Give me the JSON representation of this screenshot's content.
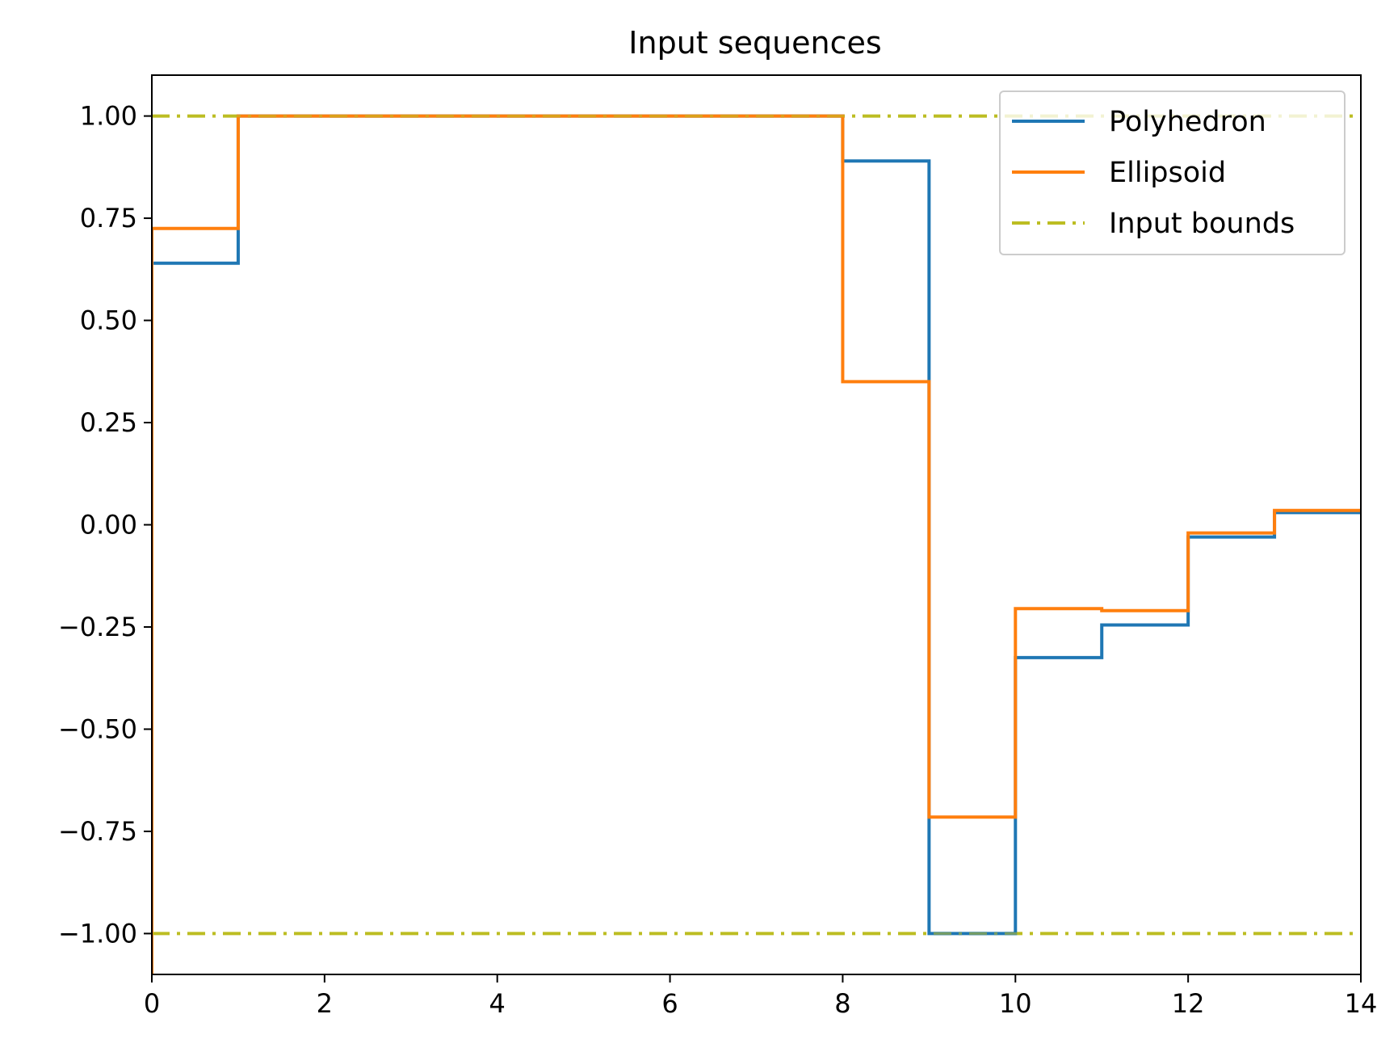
{
  "chart_data": {
    "type": "line",
    "title": "Input sequences",
    "xlabel": "",
    "ylabel": "",
    "xlim": [
      0,
      14
    ],
    "ylim": [
      -1.1,
      1.1
    ],
    "grid": false,
    "legend_position": "top-right",
    "x_ticks": [
      0,
      2,
      4,
      6,
      8,
      10,
      12,
      14
    ],
    "x_tick_labels": [
      "0",
      "2",
      "4",
      "6",
      "8",
      "10",
      "12",
      "14"
    ],
    "y_ticks": [
      1.0,
      0.75,
      0.5,
      0.25,
      0.0,
      -0.25,
      -0.5,
      -0.75,
      -1.0
    ],
    "y_tick_labels": [
      "1.00",
      "0.75",
      "0.50",
      "0.25",
      "0.00",
      "−0.25",
      "−0.50",
      "−0.75",
      "−1.00"
    ],
    "series": [
      {
        "name": "Polyhedron",
        "style": "step",
        "color": "#1f77b4",
        "x": [
          0,
          1,
          2,
          3,
          4,
          5,
          6,
          7,
          8,
          9,
          10,
          11,
          12,
          13,
          14
        ],
        "values": [
          0.64,
          1.0,
          1.0,
          1.0,
          1.0,
          1.0,
          1.0,
          1.0,
          0.89,
          -1.0,
          -0.325,
          -0.245,
          -0.03,
          0.03,
          0.03
        ]
      },
      {
        "name": "Ellipsoid",
        "style": "step",
        "color": "#ff7f0e",
        "x": [
          0,
          1,
          2,
          3,
          4,
          5,
          6,
          7,
          8,
          9,
          10,
          11,
          12,
          13,
          14
        ],
        "values": [
          0.725,
          1.0,
          1.0,
          1.0,
          1.0,
          1.0,
          1.0,
          1.0,
          0.35,
          -0.715,
          -0.205,
          -0.21,
          -0.02,
          0.035,
          0.035
        ]
      },
      {
        "name": "Input bounds",
        "style": "dashdot",
        "color": "#bcbd22",
        "lines": [
          1.0,
          -1.0
        ]
      }
    ]
  }
}
